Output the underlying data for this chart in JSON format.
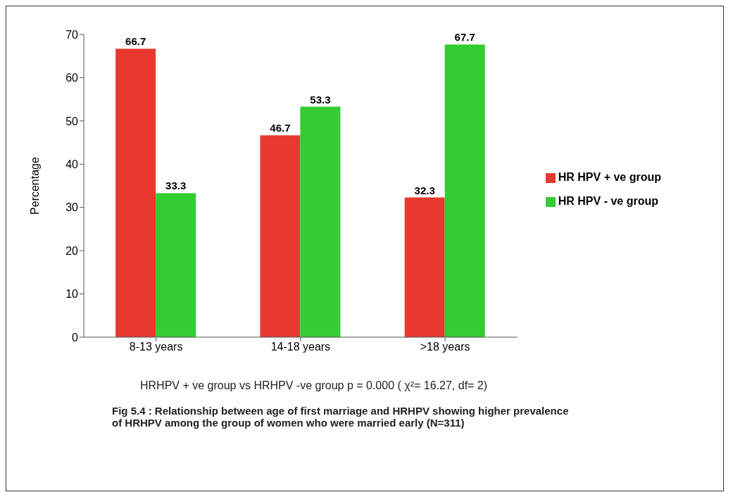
{
  "chart_data": {
    "type": "bar",
    "ylabel": "Percentage",
    "categories": [
      "8-13 years",
      "14-18 years",
      ">18 years"
    ],
    "series": [
      {
        "name": "HR HPV + ve group",
        "color": "#e8392e",
        "values": [
          66.7,
          46.7,
          32.3
        ]
      },
      {
        "name": "HR HPV - ve group",
        "color": "#33cc33",
        "values": [
          33.3,
          53.3,
          67.7
        ]
      }
    ],
    "ylim": [
      0,
      70
    ],
    "yticks": [
      0,
      10,
      20,
      30,
      40,
      50,
      60,
      70
    ],
    "data_labels": true,
    "legend": "right",
    "grid": false,
    "annotations": [
      "HRHPV + ve group vs HRHPV -ve group p = 0.000 ( χ²= 16.27, df= 2)",
      "Fig 5.4 : Relationship between age of first marriage and HRHPV showing higher prevalence of HRHPV among the group of women who were married early (N=311)"
    ]
  }
}
